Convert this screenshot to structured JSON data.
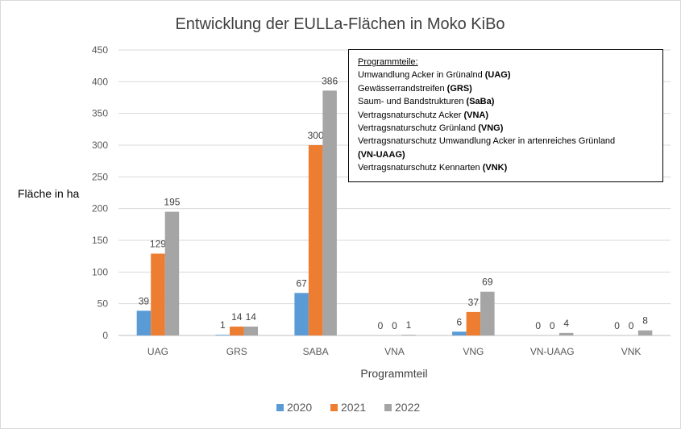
{
  "chart_data": {
    "type": "bar",
    "title": "Entwicklung  der EULLa-Flächen in Moko KiBo",
    "xlabel": "Programmteil",
    "ylabel": "Fläche in ha",
    "categories": [
      "UAG",
      "GRS",
      "SABA",
      "VNA",
      "VNG",
      "VN-UAAG",
      "VNK"
    ],
    "series": [
      {
        "name": "2020",
        "values": [
          39,
          1,
          67,
          0,
          6,
          0,
          0
        ],
        "color": "#5b9bd5"
      },
      {
        "name": "2021",
        "values": [
          129,
          14,
          300,
          0,
          37,
          0,
          0
        ],
        "color": "#ed7d31"
      },
      {
        "name": "2022",
        "values": [
          195,
          14,
          386,
          1,
          69,
          4,
          8
        ],
        "color": "#a5a5a5"
      }
    ],
    "ylim": [
      0,
      450
    ],
    "yticks": [
      0,
      50,
      100,
      150,
      200,
      250,
      300,
      350,
      400,
      450
    ],
    "grid": true,
    "legend_position": "bottom"
  },
  "info_box": {
    "heading": "Programmteile:",
    "lines": [
      {
        "text": "Umwandlung Acker in Grünalnd ",
        "abbr": "(UAG)"
      },
      {
        "text": "Gewässerrandstreifen ",
        "abbr": "(GRS)"
      },
      {
        "text": "Saum- und Bandstrukturen ",
        "abbr": "(SaBa)"
      },
      {
        "text": "Vertragsnaturschutz Acker ",
        "abbr": "(VNA)"
      },
      {
        "text": "Vertragsnaturschutz Grünland ",
        "abbr": "(VNG)"
      },
      {
        "text": "Vertragsnaturschutz Umwandlung Acker  in artenreiches Grünland",
        "abbr": ""
      },
      {
        "text": "",
        "abbr": "(VN-UAAG)"
      },
      {
        "text": "Vertragsnaturschutz Kennarten ",
        "abbr": "(VNK)"
      }
    ]
  }
}
